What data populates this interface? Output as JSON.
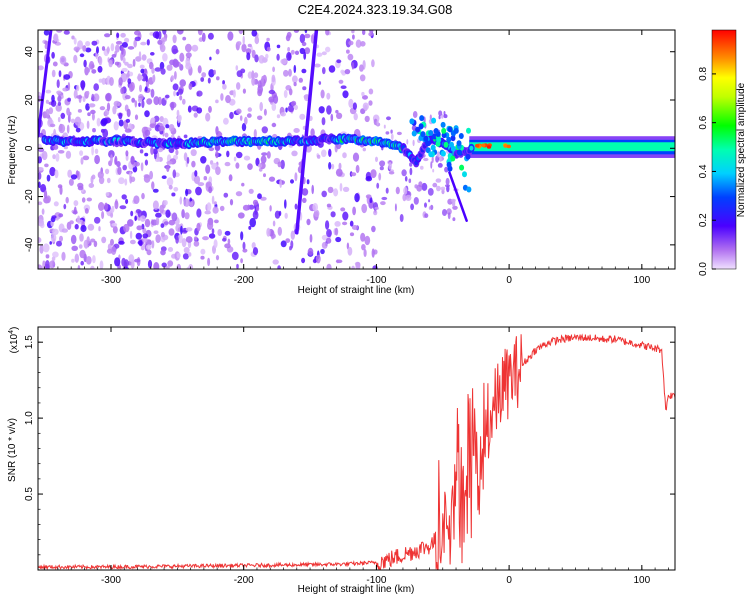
{
  "title": "C2E4.2024.323.19.34.G08",
  "chart_data": [
    {
      "type": "heatmap",
      "xlabel": "Height of straight line (km)",
      "ylabel": "Frequency (Hz)",
      "xlim": [
        -355,
        125
      ],
      "ylim": [
        -50,
        49
      ],
      "xticks": [
        -300,
        -200,
        -100,
        0,
        100
      ],
      "yticks": [
        -40,
        -20,
        0,
        20,
        40
      ],
      "colorbar": {
        "label": "Normalized spectral amplitude",
        "range": [
          0,
          0.98
        ],
        "ticks": [
          0.0,
          0.2,
          0.4,
          0.6,
          0.8
        ]
      },
      "ridge": [
        {
          "x": -345,
          "y": 3
        },
        {
          "x": -300,
          "y": 3
        },
        {
          "x": -250,
          "y": 2
        },
        {
          "x": -200,
          "y": 3
        },
        {
          "x": -160,
          "y": 3
        },
        {
          "x": -130,
          "y": 4
        },
        {
          "x": -100,
          "y": 3
        },
        {
          "x": -80,
          "y": 0
        },
        {
          "x": -70,
          "y": -6
        },
        {
          "x": -60,
          "y": 4
        },
        {
          "x": -50,
          "y": 2
        },
        {
          "x": -40,
          "y": -2
        },
        {
          "x": -25,
          "y": 0
        },
        {
          "x": -10,
          "y": 1
        },
        {
          "x": 0,
          "y": 1
        },
        {
          "x": 50,
          "y": 1
        },
        {
          "x": 100,
          "y": 1
        },
        {
          "x": 125,
          "y": 1
        }
      ],
      "scattered_region_xlim": [
        -355,
        -100
      ],
      "band_region_xlim": [
        -30,
        125
      ]
    },
    {
      "type": "line",
      "xlabel": "Height of straight line (km)",
      "ylabel": "SNR (10 * v/v)",
      "yscale_label": "(x10",
      "yscale_exponent": "4",
      "xlim": [
        -355,
        125
      ],
      "ylim": [
        0,
        1.6
      ],
      "xticks": [
        -300,
        -200,
        -100,
        0,
        100
      ],
      "yticks": [
        0.5,
        1.0,
        1.5
      ],
      "ytick_labels": [
        "0.5",
        "1.0",
        "1.5"
      ],
      "color": "#ee3333",
      "series": [
        {
          "x": [
            -355,
            -300,
            -250,
            -200,
            -150,
            -120,
            -100,
            -90,
            -80,
            -70,
            -60,
            -55,
            -50,
            -45,
            -40,
            -35,
            -30,
            -25,
            -20,
            -15,
            -10,
            -5,
            0,
            10,
            20,
            30,
            40,
            50,
            60,
            70,
            80,
            90,
            100,
            110,
            115,
            118,
            120,
            125
          ],
          "y": [
            0.02,
            0.02,
            0.025,
            0.03,
            0.035,
            0.04,
            0.05,
            0.07,
            0.1,
            0.13,
            0.16,
            0.2,
            0.3,
            0.4,
            0.55,
            0.6,
            0.65,
            0.7,
            0.8,
            0.95,
            1.1,
            1.2,
            1.25,
            1.35,
            1.45,
            1.5,
            1.52,
            1.53,
            1.53,
            1.52,
            1.52,
            1.5,
            1.48,
            1.46,
            1.45,
            1.05,
            1.15,
            1.15
          ]
        }
      ]
    }
  ]
}
